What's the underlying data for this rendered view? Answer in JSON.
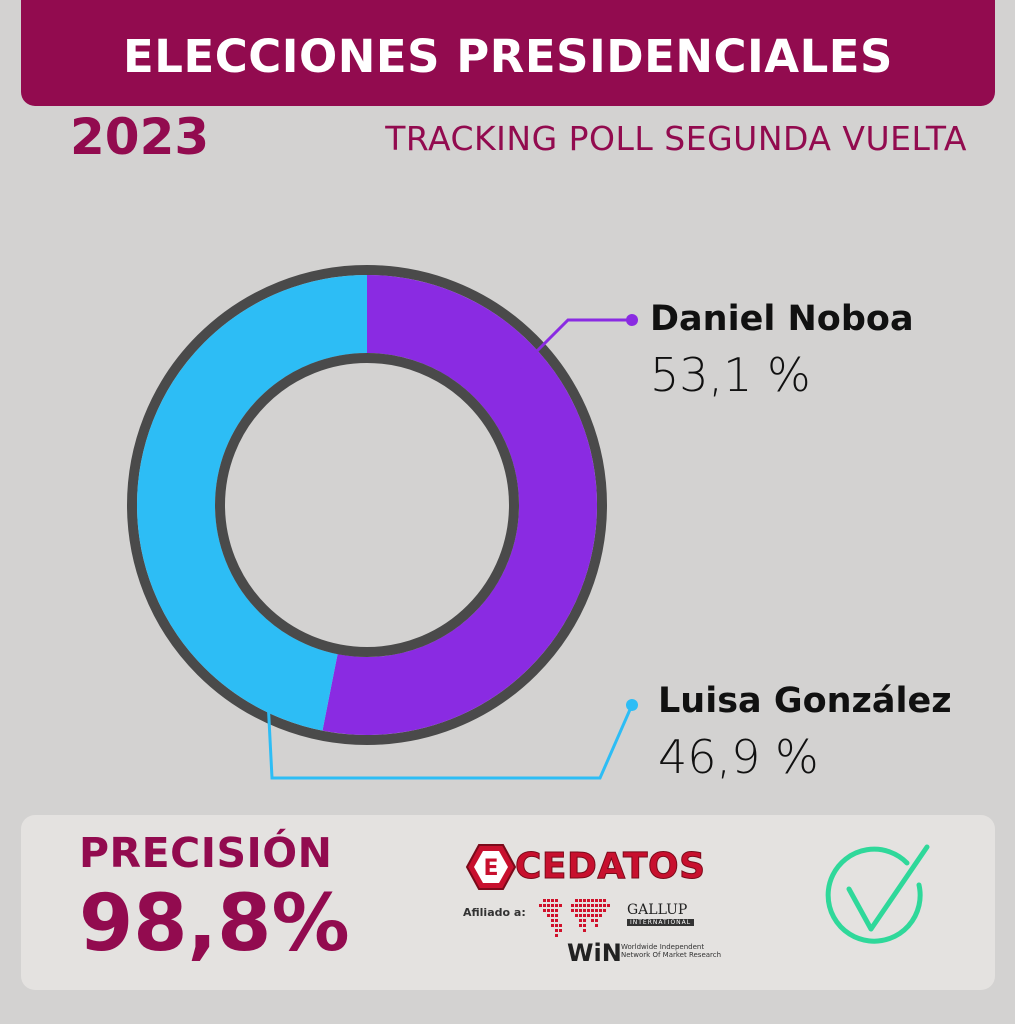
{
  "header": {
    "title": "ELECCIONES PRESIDENCIALES",
    "year": "2023",
    "subtitle": "TRACKING POLL SEGUNDA VUELTA"
  },
  "chart_data": {
    "type": "pie",
    "series": [
      {
        "name": "Daniel Noboa",
        "value": 53.1,
        "label": "53,1 %",
        "color": "#8a2be2"
      },
      {
        "name": "Luisa González",
        "value": 46.9,
        "label": "46,9 %",
        "color": "#2dbdf5"
      }
    ],
    "style": "donut",
    "ring_color": "#4a4a4a"
  },
  "footer": {
    "precision_label": "PRECISIÓN",
    "precision_value": "98,8%",
    "logo": {
      "name": "CEDATOS",
      "affiliation": "Afiliado a:",
      "gallup": "GALLUP",
      "gallup_sub": "INTERNATIONAL",
      "win": "WiN",
      "win_description": "Worldwide Independent Network Of Market Research"
    },
    "check_icon": "checkmark-icon",
    "check_color": "#2fd89a"
  },
  "colors": {
    "brand": "#920b4f",
    "background": "#d3d2d1"
  }
}
